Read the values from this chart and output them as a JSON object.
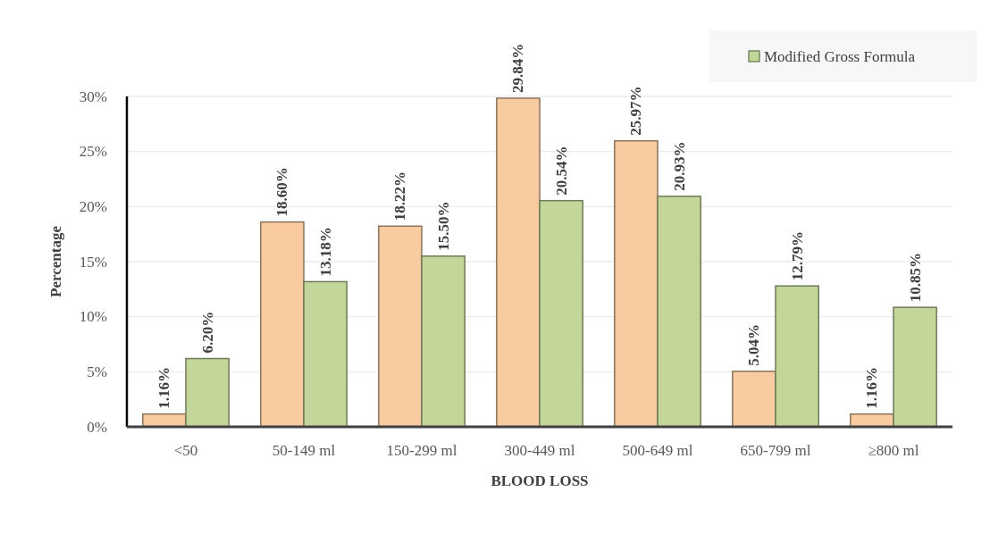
{
  "chart_data": {
    "type": "bar",
    "xlabel": "BLOOD LOSS",
    "ylabel": "Percentage",
    "categories": [
      "<50",
      "50-149 ml",
      "150-299 ml",
      "300-449 ml",
      "500-649 ml",
      "650-799 ml",
      "≥800 ml"
    ],
    "series": [
      {
        "color": "#f8cba0",
        "values": [
          1.16,
          18.6,
          18.22,
          29.84,
          25.97,
          5.04,
          1.16
        ],
        "value_labels": [
          "1.16%",
          "18.60%",
          "18.22%",
          "29.84%",
          "25.97%",
          "5.04%",
          "1.16%"
        ]
      },
      {
        "name": "Modified Gross Formula",
        "color": "#c4d79b",
        "values": [
          6.2,
          13.18,
          15.5,
          20.54,
          20.93,
          12.79,
          10.85
        ],
        "value_labels": [
          "6.20%",
          "13.18%",
          "15.50%",
          "20.54%",
          "20.93%",
          "12.79%",
          "10.85%"
        ]
      }
    ],
    "ylim": [
      0,
      30
    ],
    "yticks": [
      {
        "value": 0,
        "label": "0%"
      },
      {
        "value": 5,
        "label": "5%"
      },
      {
        "value": 10,
        "label": "10%"
      },
      {
        "value": 15,
        "label": "15%"
      },
      {
        "value": 20,
        "label": "20%"
      },
      {
        "value": 25,
        "label": "25%"
      },
      {
        "value": 30,
        "label": "30%"
      }
    ],
    "grid": "y",
    "legend": "top right"
  }
}
